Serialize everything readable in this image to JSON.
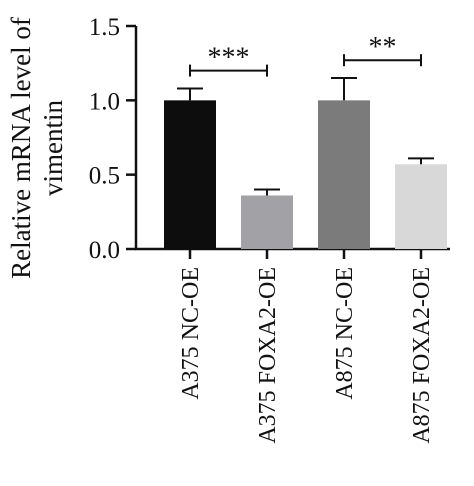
{
  "chart_data": {
    "type": "bar",
    "ylabel_lines": [
      "Relative mRNA level of",
      "vimentin"
    ],
    "ylim": [
      0,
      1.5
    ],
    "yticks": [
      "0.0",
      "0.5",
      "1.0",
      "1.5"
    ],
    "ytick_values": [
      0,
      0.5,
      1.0,
      1.5
    ],
    "categories": [
      "A375 NC-OE",
      "A375 FOXA2-OE",
      "A875 NC-OE",
      "A875 FOXA2-OE"
    ],
    "values": [
      1.0,
      0.36,
      1.0,
      0.57
    ],
    "errors": [
      0.08,
      0.04,
      0.15,
      0.04
    ],
    "colors": [
      "#0d0d0d",
      "#a2a2a6",
      "#7b7b7b",
      "#d8d8d8"
    ],
    "significance": [
      {
        "from": 0,
        "to": 1,
        "label": "***",
        "level": 1.2
      },
      {
        "from": 2,
        "to": 3,
        "label": "**",
        "level": 1.27
      }
    ]
  }
}
